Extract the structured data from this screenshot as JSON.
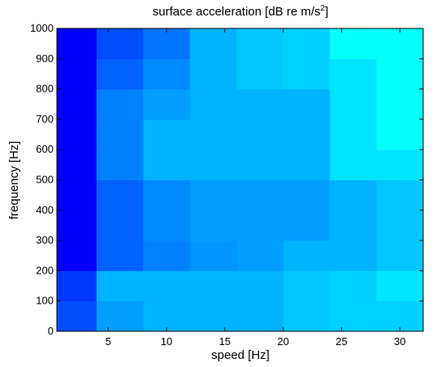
{
  "chart_data": {
    "type": "heatmap",
    "title": "surface acceleration [dB re m/s",
    "title_sup": "2",
    "title_end": "]",
    "xlabel": "speed [Hz]",
    "ylabel": "frequency [Hz]",
    "xlim": [
      0.6,
      32
    ],
    "ylim": [
      0,
      1000
    ],
    "xticks": [
      5,
      10,
      15,
      20,
      25,
      30
    ],
    "yticks": [
      0,
      100,
      200,
      300,
      400,
      500,
      600,
      700,
      800,
      900,
      1000
    ],
    "colormap": "jet",
    "x_bins": [
      0.6,
      4,
      8,
      12,
      16,
      20,
      24,
      28,
      32
    ],
    "y_bins": [
      0,
      100,
      200,
      300,
      400,
      500,
      600,
      700,
      800,
      900,
      1000
    ],
    "z": [
      [
        0.2,
        0.28,
        0.3,
        0.3,
        0.3,
        0.32,
        0.33,
        0.33
      ],
      [
        0.18,
        0.3,
        0.3,
        0.3,
        0.3,
        0.32,
        0.33,
        0.35
      ],
      [
        0.12,
        0.22,
        0.25,
        0.27,
        0.28,
        0.3,
        0.3,
        0.32
      ],
      [
        0.12,
        0.22,
        0.26,
        0.28,
        0.28,
        0.28,
        0.3,
        0.32
      ],
      [
        0.12,
        0.22,
        0.26,
        0.28,
        0.28,
        0.28,
        0.3,
        0.32
      ],
      [
        0.12,
        0.25,
        0.3,
        0.3,
        0.3,
        0.3,
        0.35,
        0.35
      ],
      [
        0.12,
        0.25,
        0.3,
        0.3,
        0.3,
        0.3,
        0.35,
        0.38
      ],
      [
        0.12,
        0.25,
        0.28,
        0.3,
        0.3,
        0.3,
        0.35,
        0.38
      ],
      [
        0.12,
        0.22,
        0.26,
        0.3,
        0.32,
        0.33,
        0.35,
        0.38
      ],
      [
        0.12,
        0.2,
        0.24,
        0.3,
        0.32,
        0.33,
        0.38,
        0.38
      ]
    ]
  }
}
